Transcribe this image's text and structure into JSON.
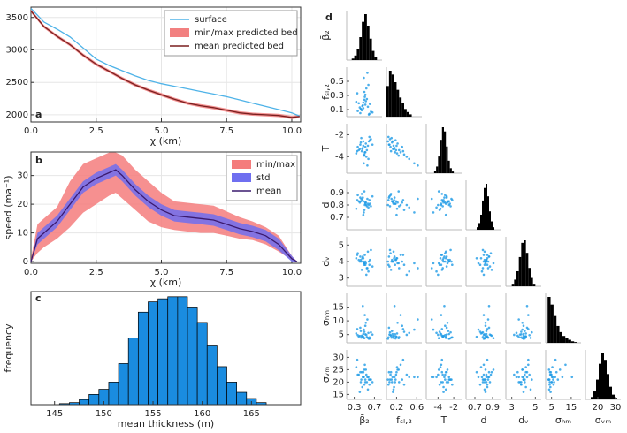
{
  "chart_data": [
    {
      "type": "line",
      "label": "a",
      "xlabel": "χ (km)",
      "grid": true,
      "legend": "top-right",
      "x": [
        0,
        0.5,
        1,
        1.5,
        2,
        2.5,
        3,
        3.5,
        4,
        4.5,
        5,
        5.5,
        6,
        6.5,
        7,
        7.5,
        8,
        8.5,
        9,
        9.5,
        10,
        10.3
      ],
      "xlim": [
        0,
        10.34
      ],
      "xticks": [
        {
          "value": 0,
          "label": "0.0"
        },
        {
          "value": 2.5,
          "label": "2.5"
        },
        {
          "value": 5,
          "label": "5.0"
        },
        {
          "value": 7.5,
          "label": "7.5"
        },
        {
          "value": 10,
          "label": "10.0"
        }
      ],
      "ylim": [
        1890,
        3660
      ],
      "yticks": [
        2000,
        2500,
        3000,
        3500
      ],
      "series": [
        {
          "name": "surface",
          "color": "#4fb3e8",
          "values": [
            3640,
            3430,
            3320,
            3200,
            3030,
            2860,
            2760,
            2680,
            2600,
            2530,
            2480,
            2440,
            2400,
            2360,
            2320,
            2280,
            2230,
            2180,
            2130,
            2080,
            2030,
            1980
          ]
        },
        {
          "name": "min/max predicted bed",
          "color": "#f28080",
          "lower": [
            3575,
            3335,
            3185,
            3055,
            2895,
            2755,
            2645,
            2535,
            2435,
            2355,
            2285,
            2215,
            2155,
            2115,
            2085,
            2045,
            2005,
            1985,
            1975,
            1965,
            1935,
            1950
          ],
          "upper": [
            3625,
            3385,
            3235,
            3105,
            2945,
            2805,
            2695,
            2585,
            2485,
            2405,
            2335,
            2265,
            2205,
            2165,
            2135,
            2095,
            2055,
            2035,
            2025,
            2015,
            1985,
            2000
          ]
        },
        {
          "name": "mean predicted bed",
          "color": "#7a1f1f",
          "values": [
            3600,
            3360,
            3210,
            3080,
            2920,
            2780,
            2670,
            2560,
            2460,
            2380,
            2310,
            2240,
            2180,
            2140,
            2110,
            2070,
            2030,
            2010,
            2000,
            1990,
            1960,
            1975
          ]
        }
      ]
    },
    {
      "type": "line",
      "label": "b",
      "xlabel": "χ (km)",
      "ylabel": "speed (ma⁻¹)",
      "grid": true,
      "legend": "top-right",
      "x": [
        0,
        0.25,
        0.5,
        1,
        1.5,
        2,
        2.5,
        3,
        3.25,
        3.5,
        4,
        4.5,
        5,
        5.5,
        6,
        6.5,
        7,
        7.5,
        8,
        8.5,
        9,
        9.5,
        10,
        10.2
      ],
      "xlim": [
        0,
        10.34
      ],
      "xticks": [
        {
          "value": 0,
          "label": "0.0"
        },
        {
          "value": 2.5,
          "label": "2.5"
        },
        {
          "value": 5,
          "label": "5.0"
        },
        {
          "value": 7.5,
          "label": "7.5"
        },
        {
          "value": 10,
          "label": "10.0"
        }
      ],
      "ylim": [
        -0.6,
        38.2
      ],
      "yticks": [
        0,
        10,
        20,
        30
      ],
      "series": [
        {
          "name": "min/max",
          "color": "#f47c7c",
          "lower": [
            0,
            3,
            5,
            8,
            12,
            17,
            20,
            23,
            24,
            22,
            18,
            14,
            12,
            11,
            10.5,
            10,
            10,
            9,
            8,
            7.5,
            6,
            3.5,
            0.5,
            0
          ],
          "upper": [
            1,
            13,
            15,
            19,
            28,
            34,
            36,
            38,
            38,
            37,
            32,
            28,
            24,
            21,
            20.5,
            20,
            19.5,
            17.5,
            15.5,
            14,
            12,
            9,
            2,
            0
          ]
        },
        {
          "name": "std",
          "color": "#6f6ff0",
          "lower": [
            0,
            6,
            8,
            12,
            18,
            24,
            27,
            29,
            30,
            28,
            23,
            19,
            16,
            14,
            13.5,
            13,
            12.5,
            11,
            9.5,
            8.5,
            7,
            4,
            0,
            0
          ],
          "upper": [
            0,
            10,
            12,
            16,
            22,
            28,
            31,
            33,
            34,
            32,
            27,
            23,
            20,
            18,
            17.5,
            17,
            16.5,
            15,
            13.5,
            12.5,
            11,
            8,
            2,
            0
          ]
        },
        {
          "name": "mean",
          "color": "#3a1a6e",
          "values": [
            0,
            8,
            10,
            14,
            20,
            26,
            29,
            31,
            32,
            30,
            25,
            21,
            18,
            16,
            15.5,
            15,
            14.5,
            13,
            11.5,
            10.5,
            9,
            6,
            1,
            0
          ]
        }
      ]
    },
    {
      "type": "histogram",
      "label": "c",
      "xlabel": "mean thickness (m)",
      "ylabel": "frequency",
      "color": "#1a8ce0",
      "bins": [
        145.5,
        146.5,
        147.5,
        148.5,
        149.5,
        150.5,
        151.5,
        152.5,
        153.5,
        154.5,
        155.5,
        156.5,
        157.5,
        158.5,
        159.5,
        160.5,
        161.5,
        162.5,
        163.5,
        164.5,
        165.5,
        166.5
      ],
      "counts": [
        1,
        2,
        5,
        10,
        15,
        22,
        40,
        65,
        90,
        100,
        103,
        105,
        105,
        95,
        80,
        58,
        37,
        22,
        12,
        6,
        2
      ],
      "xlim": [
        142.6,
        170
      ],
      "xticks": [
        145,
        150,
        155,
        160,
        165
      ],
      "ylim": [
        0,
        110
      ]
    },
    {
      "type": "corner",
      "label": "d",
      "point_color": "#1f9be6",
      "hist_color": "#000000",
      "variables": [
        {
          "name": "β̄₂",
          "lim": [
            0.15,
            0.85
          ],
          "xticks": [
            0.3,
            0.7
          ],
          "yticks": [],
          "bins": [
            0.25,
            0.3,
            0.35,
            0.4,
            0.45,
            0.5,
            0.55,
            0.6,
            0.65,
            0.7,
            0.75
          ],
          "counts": [
            2,
            6,
            15,
            30,
            50,
            60,
            45,
            28,
            12,
            4
          ],
          "samples": [
            0.48,
            0.55,
            0.42,
            0.61,
            0.5,
            0.37,
            0.53,
            0.46,
            0.58,
            0.44,
            0.51,
            0.66,
            0.39,
            0.49,
            0.57,
            0.45,
            0.52,
            0.34,
            0.6,
            0.47,
            0.54,
            0.43,
            0.5,
            0.63,
            0.41,
            0.56,
            0.48,
            0.52,
            0.36,
            0.59
          ]
        },
        {
          "name": "fₛₗ,₂",
          "lim": [
            0,
            0.7
          ],
          "xticks": [
            0.2,
            0.6
          ],
          "yticks": [
            0.1,
            0.3,
            0.5
          ],
          "bins": [
            0,
            0.05,
            0.1,
            0.15,
            0.2,
            0.25,
            0.3,
            0.35,
            0.4,
            0.45,
            0.5
          ],
          "counts": [
            40,
            60,
            55,
            45,
            35,
            25,
            18,
            10,
            6,
            3
          ],
          "samples": [
            0.12,
            0.25,
            0.05,
            0.18,
            0.35,
            0.08,
            0.22,
            0.15,
            0.45,
            0.1,
            0.28,
            0.06,
            0.19,
            0.55,
            0.14,
            0.09,
            0.31,
            0.21,
            0.04,
            0.16,
            0.4,
            0.11,
            0.24,
            0.07,
            0.13,
            0.62,
            0.2,
            0.17,
            0.33,
            0.03
          ]
        },
        {
          "name": "T",
          "lim": [
            -5.5,
            -1
          ],
          "xticks": [
            -4,
            -2
          ],
          "yticks": [
            -4,
            -2
          ],
          "bins": [
            -4.5,
            -4.25,
            -4,
            -3.75,
            -3.5,
            -3.25,
            -3,
            -2.75,
            -2.5,
            -2.25,
            -2
          ],
          "counts": [
            3,
            8,
            20,
            40,
            55,
            50,
            32,
            15,
            6,
            2
          ],
          "samples": [
            -2.6,
            -3.4,
            -2.9,
            -2.5,
            -3.8,
            -3.1,
            -2.8,
            -3.3,
            -4.2,
            -2.3,
            -3.6,
            -2.9,
            -3.4,
            -4.6,
            -3.0,
            -3.5,
            -3.1,
            -3.7,
            -2.2,
            -3.2,
            -4.0,
            -2.7,
            -3.9,
            -2.4,
            -3.3,
            -4.8,
            -3.0,
            -3.6,
            -3.5,
            -2.6
          ]
        },
        {
          "name": "d",
          "lim": [
            0.6,
            1.0
          ],
          "xticks": [
            0.7,
            0.9
          ],
          "yticks": [
            0.7,
            0.8,
            0.9
          ],
          "bins": [
            0.72,
            0.74,
            0.76,
            0.78,
            0.8,
            0.82,
            0.84,
            0.86,
            0.88,
            0.9,
            0.92
          ],
          "counts": [
            3,
            8,
            18,
            35,
            50,
            55,
            40,
            22,
            10,
            3
          ],
          "samples": [
            0.83,
            0.79,
            0.86,
            0.81,
            0.76,
            0.88,
            0.82,
            0.84,
            0.78,
            0.85,
            0.8,
            0.87,
            0.83,
            0.74,
            0.81,
            0.89,
            0.82,
            0.77,
            0.84,
            0.86,
            0.8,
            0.83,
            0.91,
            0.79,
            0.82,
            0.85,
            0.72,
            0.81,
            0.84,
            0.8
          ]
        },
        {
          "name": "dᵥ",
          "lim": [
            2.5,
            5.5
          ],
          "xticks": [
            3,
            5
          ],
          "yticks": [
            3,
            4,
            5
          ],
          "bins": [
            3,
            3.2,
            3.4,
            3.6,
            3.8,
            4,
            4.2,
            4.4,
            4.6,
            4.8,
            5
          ],
          "counts": [
            3,
            8,
            18,
            35,
            52,
            55,
            40,
            22,
            10,
            3
          ],
          "samples": [
            4.0,
            3.6,
            4.3,
            4.1,
            3.8,
            4.5,
            3.9,
            4.2,
            3.4,
            4.0,
            4.4,
            3.7,
            4.1,
            3.9,
            4.6,
            3.5,
            4.0,
            4.2,
            3.8,
            4.3,
            3.2,
            4.1,
            3.9,
            4.7,
            4.0,
            3.6,
            4.2,
            3.8,
            4.4,
            4.0
          ]
        },
        {
          "name": "σₕₘ",
          "lim": [
            2,
            20
          ],
          "xticks": [
            5,
            15
          ],
          "yticks": [
            5,
            10,
            15
          ],
          "bins": [
            3,
            4.5,
            6,
            7.5,
            9,
            10.5,
            12,
            13.5,
            15,
            16.5,
            18
          ],
          "counts": [
            60,
            50,
            35,
            22,
            14,
            9,
            6,
            4,
            2,
            1
          ],
          "samples": [
            5.2,
            4.1,
            7.5,
            3.6,
            6.0,
            4.8,
            9.3,
            4.4,
            5.6,
            3.9,
            12.1,
            5.0,
            4.3,
            6.8,
            3.8,
            4.6,
            8.2,
            5.4,
            4.0,
            15.4,
            4.9,
            6.3,
            3.7,
            5.8,
            4.5,
            10.5,
            4.2,
            5.1,
            7.0,
            3.5
          ]
        },
        {
          "name": "σᵥₘ",
          "lim": [
            13,
            33
          ],
          "xticks": [
            20,
            30
          ],
          "yticks": [
            15,
            20,
            25,
            30
          ],
          "bins": [
            16,
            17.5,
            19,
            20.5,
            22,
            23.5,
            25,
            26.5,
            28,
            29.5,
            31
          ],
          "counts": [
            3,
            10,
            25,
            45,
            58,
            50,
            32,
            16,
            6,
            2
          ],
          "samples": [
            22,
            20,
            24,
            21,
            19,
            23,
            25,
            18,
            22,
            21,
            27,
            20,
            23,
            22,
            17,
            24,
            21,
            26,
            19,
            22,
            23,
            20,
            25,
            21,
            16,
            22,
            24,
            20,
            29,
            21
          ]
        }
      ]
    }
  ]
}
